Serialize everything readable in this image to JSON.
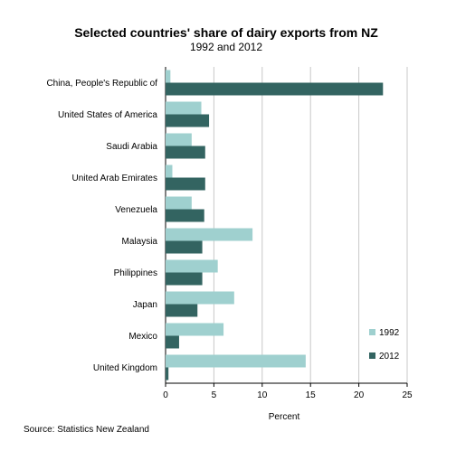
{
  "chart_data": {
    "type": "bar",
    "orientation": "horizontal",
    "title": "Selected countries' share of dairy exports from NZ",
    "subtitle": "1992 and 2012",
    "xlabel": "Percent",
    "ylabel": "",
    "xlim": [
      0,
      25
    ],
    "xticks": [
      0,
      5,
      10,
      15,
      20,
      25
    ],
    "grid": "vertical",
    "legend_position": "bottom-right",
    "categories": [
      "China, People's Republic of",
      "United States of America",
      "Saudi Arabia",
      "United Arab Emirates",
      "Venezuela",
      "Malaysia",
      "Philippines",
      "Japan",
      "Mexico",
      "United Kingdom"
    ],
    "series": [
      {
        "name": "1992",
        "color": "#9fd0cf",
        "values": [
          0.5,
          3.7,
          2.7,
          0.7,
          2.7,
          9.0,
          5.4,
          7.1,
          6.0,
          14.5
        ]
      },
      {
        "name": "2012",
        "color": "#336461",
        "values": [
          22.5,
          4.5,
          4.1,
          4.1,
          4.0,
          3.8,
          3.8,
          3.3,
          1.4,
          0.3
        ]
      }
    ]
  },
  "source": "Source: Statistics New Zealand"
}
